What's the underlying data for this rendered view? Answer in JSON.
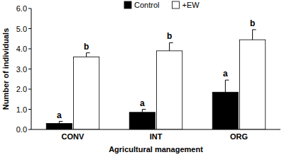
{
  "chart_data": {
    "type": "bar",
    "x_label": "Agricultural management",
    "y_label": "Number of individuals",
    "categories": [
      "CONV",
      "INT",
      "ORG"
    ],
    "series": [
      {
        "name": "Control",
        "color": "#000000",
        "values": [
          0.3,
          0.85,
          1.85
        ],
        "errors": [
          0.1,
          0.15,
          0.6
        ],
        "annotations": [
          "a",
          "a",
          "a"
        ]
      },
      {
        "name": "+EW",
        "color": "#ffffff",
        "values": [
          3.6,
          3.9,
          4.45
        ],
        "errors": [
          0.2,
          0.4,
          0.5
        ],
        "annotations": [
          "b",
          "b",
          "b"
        ]
      }
    ],
    "ylim": [
      0,
      6
    ],
    "yticks": [
      {
        "value": 0,
        "label": "0.0"
      },
      {
        "value": 1,
        "label": "1.0"
      },
      {
        "value": 2,
        "label": "2.0"
      },
      {
        "value": 3,
        "label": "3.0"
      },
      {
        "value": 4,
        "label": "4.0"
      },
      {
        "value": 5,
        "label": "5.0"
      },
      {
        "value": 6,
        "label": "6.0"
      }
    ],
    "grid": false,
    "legend": "top"
  }
}
